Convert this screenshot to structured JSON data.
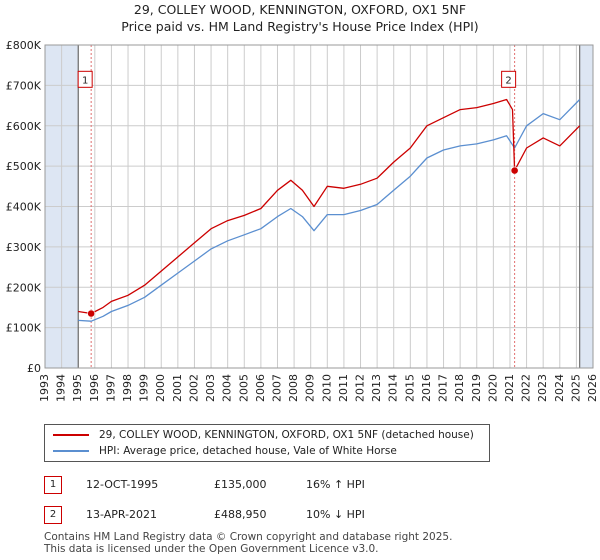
{
  "title_line1": "29, COLLEY WOOD, KENNINGTON, OXFORD, OX1 5NF",
  "title_line2": "Price paid vs. HM Land Registry's House Price Index (HPI)",
  "legend": {
    "property": "29, COLLEY WOOD, KENNINGTON, OXFORD, OX1 5NF (detached house)",
    "hpi": "HPI: Average price, detached house, Vale of White Horse"
  },
  "colors": {
    "property": "#cc0000",
    "hpi": "#5b8fd0",
    "shade": "#dde6f3",
    "grid": "#cccccc"
  },
  "transactions": [
    {
      "num": "1",
      "date": "12-OCT-1995",
      "price": "£135,000",
      "hpi_delta": "16% ↑ HPI"
    },
    {
      "num": "2",
      "date": "13-APR-2021",
      "price": "£488,950",
      "hpi_delta": "10% ↓ HPI"
    }
  ],
  "footer_line1": "Contains HM Land Registry data © Crown copyright and database right 2025.",
  "footer_line2": "This data is licensed under the Open Government Licence v3.0.",
  "chart_data": {
    "type": "line",
    "xlim": [
      1993,
      2026
    ],
    "ylim": [
      0,
      800000
    ],
    "y_ticks": [
      0,
      100000,
      200000,
      300000,
      400000,
      500000,
      600000,
      700000,
      800000
    ],
    "y_tick_labels": [
      "£0",
      "£100K",
      "£200K",
      "£300K",
      "£400K",
      "£500K",
      "£600K",
      "£700K",
      "£800K"
    ],
    "x_ticks": [
      1993,
      1994,
      1995,
      1996,
      1997,
      1998,
      1999,
      2000,
      2001,
      2002,
      2003,
      2004,
      2005,
      2006,
      2007,
      2008,
      2009,
      2010,
      2011,
      2012,
      2013,
      2014,
      2015,
      2016,
      2017,
      2018,
      2019,
      2020,
      2021,
      2022,
      2023,
      2024,
      2025,
      2026
    ],
    "x_tick_labels": [
      "1993",
      "1994",
      "1995",
      "1996",
      "1997",
      "1998",
      "1999",
      "2000",
      "2001",
      "2002",
      "2003",
      "2004",
      "2005",
      "2006",
      "2007",
      "2008",
      "2009",
      "2010",
      "2011",
      "2012",
      "2013",
      "2014",
      "2015",
      "2016",
      "2017",
      "2018",
      "2019",
      "2020",
      "2021",
      "2022",
      "2023",
      "2024",
      "2025",
      "2026"
    ],
    "shaded_ranges": [
      [
        1993,
        1995.0
      ],
      [
        2025.2,
        2026
      ]
    ],
    "markers": [
      {
        "label": "1",
        "x": 1995.78,
        "y": 135000,
        "box_y": 715000
      },
      {
        "label": "2",
        "x": 2021.28,
        "y": 488950,
        "box_y": 715000
      }
    ],
    "series": [
      {
        "name": "29, COLLEY WOOD, KENNINGTON, OXFORD, OX1 5NF (detached house)",
        "x": [
          1995.0,
          1995.78,
          1996.5,
          1997,
          1998,
          1999,
          2000,
          2001,
          2002,
          2003,
          2004,
          2005,
          2006,
          2007,
          2007.8,
          2008.5,
          2009.2,
          2010,
          2011,
          2012,
          2013,
          2014,
          2015,
          2016,
          2017,
          2018,
          2019,
          2020,
          2020.8,
          2021.15,
          2021.28,
          2022,
          2023,
          2024,
          2024.6,
          2025.2
        ],
        "y": [
          140000,
          135000,
          150000,
          165000,
          180000,
          205000,
          240000,
          275000,
          310000,
          345000,
          365000,
          378000,
          395000,
          440000,
          465000,
          440000,
          400000,
          450000,
          445000,
          455000,
          470000,
          510000,
          545000,
          600000,
          620000,
          640000,
          645000,
          655000,
          665000,
          640000,
          488950,
          545000,
          570000,
          550000,
          575000,
          600000
        ]
      },
      {
        "name": "HPI: Average price, detached house, Vale of White Horse",
        "x": [
          1995.0,
          1995.78,
          1996.5,
          1997,
          1998,
          1999,
          2000,
          2001,
          2002,
          2003,
          2004,
          2005,
          2006,
          2007,
          2007.8,
          2008.5,
          2009.2,
          2010,
          2011,
          2012,
          2013,
          2014,
          2015,
          2016,
          2017,
          2018,
          2019,
          2020,
          2020.8,
          2021.28,
          2022,
          2023,
          2024,
          2024.6,
          2025.2
        ],
        "y": [
          118000,
          116000,
          128000,
          140000,
          155000,
          175000,
          205000,
          235000,
          265000,
          295000,
          315000,
          330000,
          345000,
          375000,
          395000,
          375000,
          340000,
          380000,
          380000,
          390000,
          405000,
          440000,
          475000,
          520000,
          540000,
          550000,
          555000,
          565000,
          575000,
          545000,
          600000,
          630000,
          615000,
          640000,
          665000
        ]
      }
    ]
  }
}
